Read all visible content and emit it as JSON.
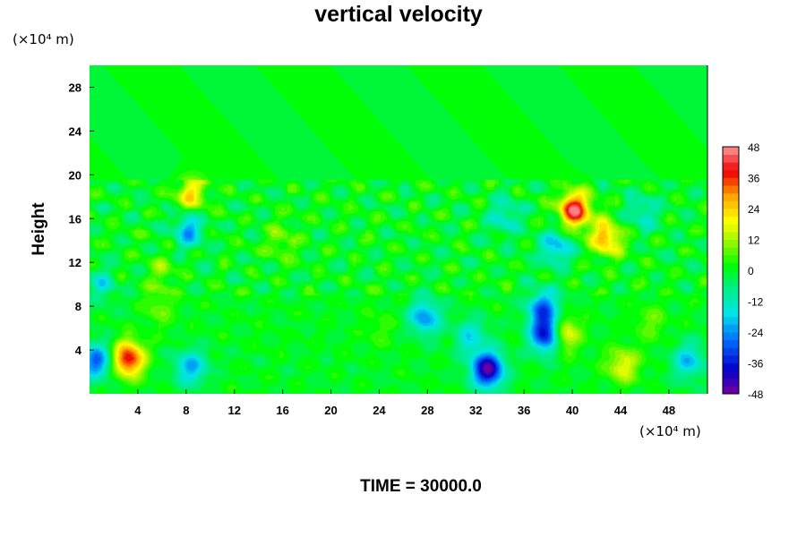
{
  "chart_data": {
    "type": "heatmap",
    "title": "vertical velocity",
    "ylabel": "Height",
    "xlabel": "",
    "x_units": "(×10⁴ m)",
    "y_units": "(×10⁴ m)",
    "time_label": "TIME = 30000.0",
    "xlim": [
      0,
      51.2
    ],
    "ylim": [
      0,
      30
    ],
    "x_ticks": [
      4,
      8,
      12,
      16,
      20,
      24,
      28,
      32,
      36,
      40,
      44,
      48
    ],
    "y_ticks": [
      4,
      8,
      12,
      16,
      20,
      24,
      28
    ],
    "colorbar": {
      "min": -48,
      "max": 48,
      "ticks": [
        48,
        36,
        24,
        12,
        0,
        -12,
        -24,
        -36,
        -48
      ],
      "levels": 32
    },
    "background_value": 0,
    "features": [
      {
        "x": 3.2,
        "y": 3.2,
        "value": 40
      },
      {
        "x": 0.6,
        "y": 3.0,
        "value": -28
      },
      {
        "x": 8.4,
        "y": 2.4,
        "value": -22
      },
      {
        "x": 33.0,
        "y": 2.2,
        "value": -46
      },
      {
        "x": 37.9,
        "y": 5.4,
        "value": -42
      },
      {
        "x": 37.6,
        "y": 7.8,
        "value": -28
      },
      {
        "x": 39.2,
        "y": 5.5,
        "value": 26
      },
      {
        "x": 44.2,
        "y": 2.6,
        "value": 18
      },
      {
        "x": 49.6,
        "y": 3.0,
        "value": -20
      },
      {
        "x": 27.8,
        "y": 7.0,
        "value": -24
      },
      {
        "x": 31.6,
        "y": 5.2,
        "value": -16
      },
      {
        "x": 40.2,
        "y": 16.8,
        "value": 42
      },
      {
        "x": 42.8,
        "y": 14.2,
        "value": 28
      },
      {
        "x": 38.6,
        "y": 13.4,
        "value": -20
      },
      {
        "x": 8.4,
        "y": 18.2,
        "value": 22
      },
      {
        "x": 8.2,
        "y": 15.0,
        "value": -22
      },
      {
        "x": 34.4,
        "y": 16.2,
        "value": -14
      },
      {
        "x": 45.8,
        "y": 16.6,
        "value": -14
      },
      {
        "x": 6.0,
        "y": 11.2,
        "value": 10
      },
      {
        "x": 16.0,
        "y": 13.8,
        "value": 9
      },
      {
        "x": 5.8,
        "y": 7.8,
        "value": 8
      },
      {
        "x": 1.0,
        "y": 10.0,
        "value": -12
      },
      {
        "x": 24.0,
        "y": 6.0,
        "value": 5
      },
      {
        "x": 46.5,
        "y": 6.5,
        "value": 8
      }
    ]
  }
}
